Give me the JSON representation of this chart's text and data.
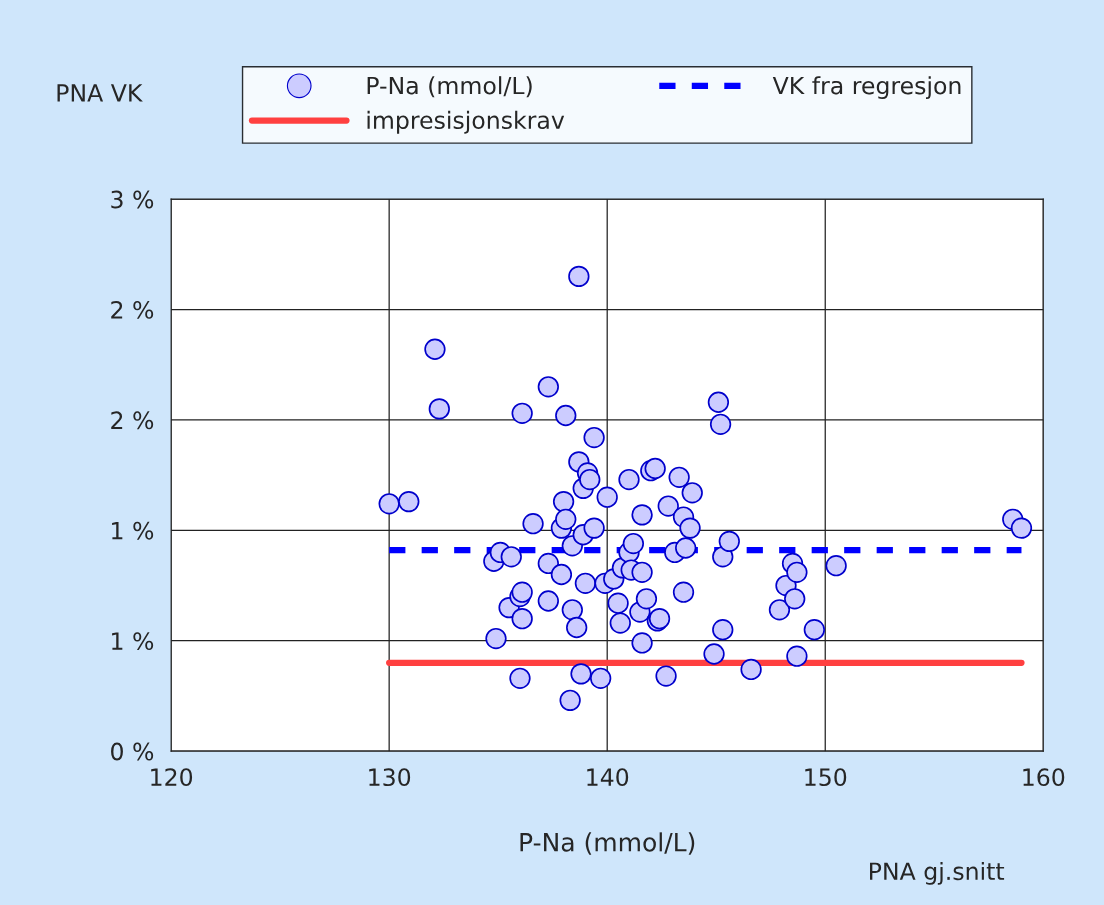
{
  "chart_data": {
    "type": "scatter",
    "xlabel": "P-Na (mmol/L)",
    "ylabel": "PNA VK",
    "annotations": [
      "PNA gj.snitt"
    ],
    "xlim": [
      120,
      160
    ],
    "xticks": [
      120,
      130,
      140,
      150,
      160
    ],
    "ylim": [
      0,
      2.5
    ],
    "yticks": [
      {
        "value": 0,
        "label": "0 %"
      },
      {
        "value": 0.5,
        "label": "1 %"
      },
      {
        "value": 1.0,
        "label": "1 %"
      },
      {
        "value": 1.5,
        "label": "2 %"
      },
      {
        "value": 2.0,
        "label": "2 %"
      },
      {
        "value": 2.5,
        "label": "3 %"
      }
    ],
    "grid": true,
    "legend": "top",
    "series": [
      {
        "name": "P-Na (mmol/L)",
        "marker": "circle",
        "color": "#ccccff",
        "x": [
          130.0,
          130.9,
          132.1,
          132.3,
          134.8,
          135.1,
          135.6,
          134.9,
          135.5,
          136.0,
          136.1,
          136.1,
          136.0,
          136.1,
          136.6,
          137.3,
          137.3,
          137.3,
          137.9,
          137.9,
          138.0,
          138.1,
          138.1,
          138.4,
          138.4,
          138.6,
          138.3,
          138.7,
          138.7,
          138.8,
          138.9,
          138.9,
          139.1,
          139.2,
          139.0,
          139.4,
          139.4,
          139.7,
          139.9,
          140.0,
          140.3,
          140.5,
          140.6,
          140.7,
          141.0,
          141.0,
          141.1,
          141.2,
          141.5,
          141.6,
          141.6,
          141.6,
          141.8,
          142.0,
          142.2,
          142.3,
          142.4,
          142.7,
          142.8,
          143.1,
          143.3,
          143.5,
          143.6,
          143.5,
          143.8,
          143.9,
          144.9,
          145.1,
          145.2,
          145.3,
          145.3,
          145.6,
          146.6,
          147.9,
          148.2,
          148.5,
          148.6,
          148.7,
          148.7,
          149.5,
          150.5,
          158.6,
          159.0
        ],
        "values": [
          1.12,
          1.13,
          1.82,
          1.55,
          0.86,
          0.9,
          0.88,
          0.51,
          0.65,
          0.7,
          0.72,
          0.6,
          0.33,
          1.53,
          1.03,
          1.65,
          0.85,
          0.68,
          0.8,
          1.01,
          1.13,
          1.05,
          1.52,
          0.93,
          0.64,
          0.56,
          0.23,
          2.15,
          1.31,
          0.35,
          0.98,
          1.19,
          1.26,
          1.23,
          0.76,
          1.42,
          1.01,
          0.33,
          0.76,
          1.15,
          0.78,
          0.67,
          0.58,
          0.83,
          1.23,
          0.9,
          0.82,
          0.94,
          0.63,
          1.07,
          0.81,
          0.49,
          0.69,
          1.27,
          1.28,
          0.59,
          0.6,
          0.34,
          1.11,
          0.9,
          1.24,
          1.06,
          0.92,
          0.72,
          1.01,
          1.17,
          0.44,
          1.58,
          1.48,
          0.88,
          0.55,
          0.95,
          0.37,
          0.64,
          0.75,
          0.85,
          0.69,
          0.81,
          0.43,
          0.55,
          0.84,
          1.05,
          1.01
        ]
      },
      {
        "name": "VK fra regresjon",
        "type": "line",
        "color": "#0000ff",
        "line_style": "dashed",
        "x": [
          130,
          159
        ],
        "values": [
          0.91,
          0.91
        ]
      },
      {
        "name": "impresisjonskrav",
        "type": "line",
        "color": "#ff4040",
        "line_style": "solid",
        "x": [
          130,
          159
        ],
        "values": [
          0.4,
          0.4
        ]
      }
    ]
  }
}
